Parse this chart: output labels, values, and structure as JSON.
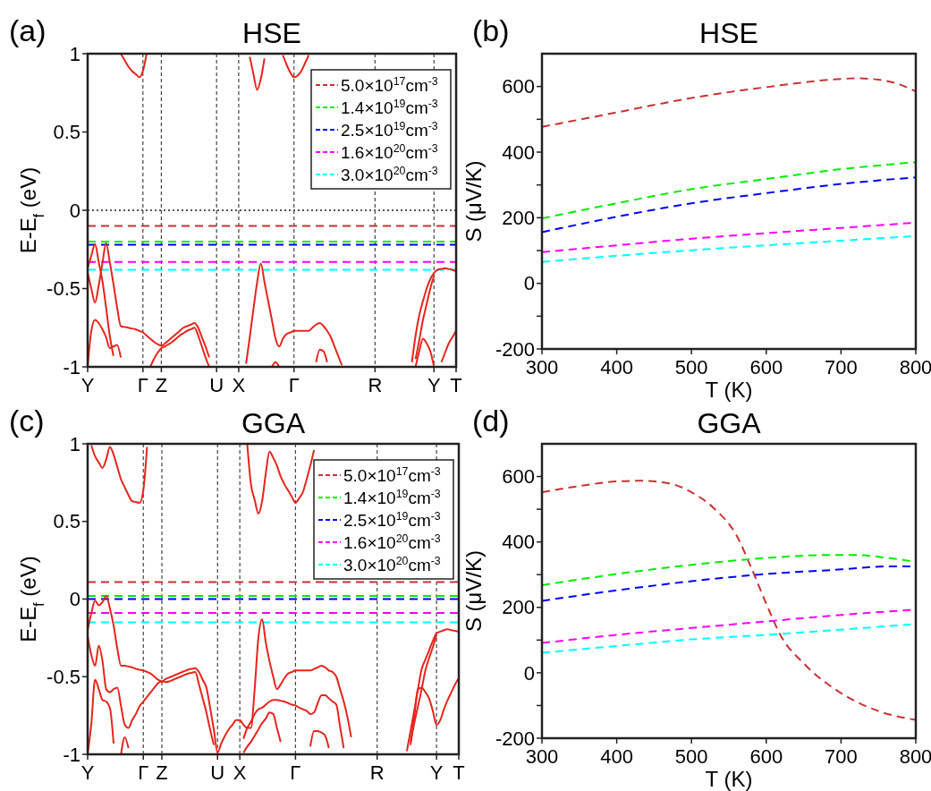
{
  "chart_data": [
    {
      "type": "line",
      "title": "HSE",
      "ylabel": "E-E$_{f}$ (eV)",
      "annotations": [
        "(a)"
      ],
      "ylim": [
        -1,
        1
      ],
      "yticks": [
        -1,
        -0.5,
        0,
        0.5,
        1
      ],
      "grid": "x",
      "legend": "top right",
      "line_style": "solid",
      "categories": [
        "Y",
        null,
        null,
        null,
        null,
        null,
        null,
        null,
        null,
        null,
        null,
        null,
        null,
        null,
        null,
        "Γ",
        null,
        null,
        null,
        null,
        "Z",
        null,
        null,
        null,
        null,
        null,
        null,
        null,
        null,
        null,
        null,
        null,
        null,
        null,
        null,
        "U",
        null,
        null,
        null,
        null,
        null,
        "X",
        null,
        null,
        null,
        null,
        null,
        null,
        null,
        null,
        null,
        null,
        null,
        null,
        null,
        null,
        "Γ",
        null,
        null,
        null,
        null,
        null,
        null,
        null,
        null,
        null,
        null,
        null,
        null,
        null,
        null,
        null,
        null,
        null,
        null,
        null,
        null,
        null,
        "R",
        null,
        null,
        null,
        null,
        null,
        null,
        null,
        null,
        null,
        null,
        null,
        null,
        null,
        null,
        null,
        "Y",
        null,
        null,
        null,
        null,
        null,
        "T"
      ],
      "ref_lines": [
        {
          "axis": "y",
          "value": 0,
          "color": "#555555",
          "line_style": "dotted"
        },
        {
          "axis": "y",
          "value": -0.1,
          "label": "5.0×10$^{17}$cm$^{-3}$",
          "color": "#c83232",
          "line_style": "dashed"
        },
        {
          "axis": "y",
          "value": -0.2,
          "label": "1.4×10$^{19}$cm$^{-3}$",
          "color": "#00ee00",
          "line_style": "dashed"
        },
        {
          "axis": "y",
          "value": -0.22,
          "label": "2.5×10$^{19}$cm$^{-3}$",
          "color": "#0000ff",
          "line_style": "dashed"
        },
        {
          "axis": "y",
          "value": -0.33,
          "label": "1.6×10$^{20}$cm$^{-3}$",
          "color": "#ff00ff",
          "line_style": "dashed"
        },
        {
          "axis": "y",
          "value": -0.38,
          "label": "3.0×10$^{20}$cm$^{-3}$",
          "color": "#00ffff",
          "line_style": "dashed"
        }
      ],
      "series": [
        {
          "color": "#e5251d",
          "values": [
            null,
            null,
            null,
            null,
            null,
            null,
            null,
            null,
            null,
            1,
            0.96,
            0.92,
            0.89,
            0.87,
            0.85,
            0.89,
            1,
            null,
            null,
            null,
            null,
            null,
            null,
            null,
            null,
            null,
            null,
            null,
            null,
            null,
            null,
            null,
            null,
            null,
            null,
            null,
            null,
            null,
            null,
            null,
            null,
            null,
            null,
            null,
            0.98,
            0.87,
            0.77,
            0.84,
            0.97,
            null,
            null,
            null,
            null,
            0.99,
            0.93,
            0.88,
            0.85,
            0.86,
            0.89,
            0.94,
            0.99,
            null,
            null,
            null,
            null,
            null,
            null,
            null,
            null,
            null,
            null,
            null,
            null,
            null,
            null,
            null,
            null,
            null,
            null,
            null,
            null,
            null,
            null,
            null,
            null,
            null,
            null,
            null,
            null,
            null,
            null,
            null,
            null,
            null,
            null,
            null,
            null,
            null,
            null,
            null,
            null
          ]
        },
        {
          "color": "#e5251d",
          "values": [
            -0.37,
            -0.29,
            -0.215,
            -0.33,
            -0.45,
            -0.62,
            -0.8,
            -0.93,
            null,
            null,
            null,
            null,
            null,
            null,
            null,
            null,
            null,
            null,
            null,
            null,
            null,
            null,
            null,
            null,
            null,
            null,
            null,
            null,
            null,
            null,
            null,
            null,
            null,
            null,
            null,
            null,
            null,
            null,
            null,
            null,
            null,
            null,
            null,
            -0.98,
            -0.81,
            -0.63,
            -0.46,
            -0.34,
            -0.46,
            -0.58,
            -0.7,
            -0.82,
            -0.87,
            -0.82,
            -0.79,
            -0.78,
            -0.77,
            -0.77,
            -0.77,
            -0.77,
            -0.77,
            -0.75,
            -0.73,
            -0.72,
            -0.74,
            -0.77,
            -0.81,
            -0.87,
            -0.93,
            -0.99,
            null,
            null,
            null,
            null,
            null,
            null,
            null,
            null,
            null,
            null,
            null,
            null,
            null,
            null,
            null,
            null,
            null,
            null,
            -0.97,
            -0.8,
            -0.67,
            -0.58,
            -0.5,
            -0.44,
            -0.4,
            -0.38,
            -0.375,
            -0.37,
            -0.375,
            -0.38,
            -0.39
          ]
        },
        {
          "color": "#e5251d",
          "values": [
            -0.4,
            -0.5,
            -0.59,
            -0.48,
            -0.34,
            -0.21,
            -0.33,
            -0.47,
            -0.62,
            -0.74,
            -0.745,
            -0.75,
            -0.755,
            -0.76,
            -0.77,
            -0.78,
            -0.8,
            -0.82,
            -0.84,
            -0.855,
            -0.865,
            -0.85,
            -0.83,
            -0.81,
            -0.79,
            -0.77,
            -0.75,
            -0.74,
            -0.73,
            -0.72,
            -0.75,
            -0.81,
            -0.87,
            -0.94,
            null,
            null,
            null,
            null,
            null,
            null,
            null,
            null,
            null,
            null,
            null,
            null,
            null,
            null,
            null,
            null,
            null,
            null,
            null,
            null,
            null,
            null,
            null,
            null,
            null,
            null,
            null,
            null,
            -0.97,
            -0.89,
            -0.9,
            -0.97,
            null,
            null,
            null,
            null,
            null,
            null,
            null,
            null,
            null,
            null,
            null,
            null,
            null,
            null,
            null,
            null,
            null,
            null,
            null,
            null,
            null,
            null,
            null,
            -0.95,
            -0.83,
            -0.7,
            -0.6,
            -0.5,
            -0.42,
            null,
            null,
            null,
            null,
            null,
            null
          ]
        },
        {
          "color": "#e5251d",
          "values": [
            -1,
            -0.77,
            -0.7,
            -0.72,
            -0.76,
            -0.81,
            -0.88,
            -0.87,
            -0.86,
            -0.94,
            null,
            null,
            null,
            null,
            null,
            null,
            null,
            -1,
            -0.95,
            -0.91,
            -0.88,
            -0.87,
            -0.855,
            -0.84,
            -0.82,
            -0.8,
            -0.785,
            -0.77,
            -0.76,
            -0.75,
            -0.8,
            -0.87,
            -0.94,
            -1,
            null,
            null,
            null,
            null,
            null,
            null,
            null,
            null,
            null,
            null,
            null,
            null,
            null,
            null,
            null,
            null,
            -1,
            -0.97,
            -1,
            null,
            null,
            null,
            null,
            null,
            null,
            null,
            null,
            null,
            null,
            null,
            null,
            null,
            null,
            null,
            null,
            null,
            null,
            null,
            null,
            null,
            null,
            null,
            null,
            null,
            null,
            null,
            null,
            null,
            null,
            null,
            null,
            null,
            null,
            null,
            null,
            -1,
            -0.9,
            -0.82,
            -0.85,
            -0.9,
            -1,
            null,
            -0.97,
            -0.91,
            -0.85,
            -0.81,
            -0.77
          ]
        }
      ]
    },
    {
      "type": "line",
      "title": "HSE",
      "xlabel": "T (K)",
      "ylabel": "S (μV/K)",
      "annotations": [
        "(b)"
      ],
      "xlim": [
        300,
        800
      ],
      "ylim": [
        -200,
        700
      ],
      "xticks": [
        300,
        400,
        500,
        600,
        700,
        800
      ],
      "yticks": [
        -200,
        {
          "value": -100,
          "label": null
        },
        0,
        {
          "value": 100,
          "label": null
        },
        200,
        {
          "value": 300,
          "label": null
        },
        400,
        {
          "value": 500,
          "label": null
        },
        600
      ],
      "line_style": "dashed",
      "series": [
        {
          "color": "#c83232",
          "x": [
            300,
            400,
            500,
            600,
            700,
            720,
            750,
            780,
            800
          ],
          "values": [
            477,
            521,
            565,
            598,
            623,
            625,
            621,
            605,
            585
          ]
        },
        {
          "color": "#00ee00",
          "x": [
            300,
            400,
            500,
            600,
            700,
            800
          ],
          "values": [
            198,
            244,
            287,
            318,
            348,
            369
          ]
        },
        {
          "color": "#0000ff",
          "x": [
            300,
            400,
            500,
            600,
            700,
            800
          ],
          "values": [
            156,
            203,
            244,
            275,
            303,
            323
          ]
        },
        {
          "color": "#ff00ff",
          "x": [
            300,
            400,
            500,
            600,
            700,
            800
          ],
          "values": [
            95,
            116,
            136,
            153,
            169,
            185
          ]
        },
        {
          "color": "#00ffff",
          "x": [
            300,
            400,
            500,
            600,
            700,
            800
          ],
          "values": [
            65,
            84,
            101,
            116,
            130,
            144
          ]
        }
      ]
    },
    {
      "type": "line",
      "title": "GGA",
      "ylabel": "E-E$_{f}$ (eV)",
      "annotations": [
        "(c)"
      ],
      "ylim": [
        -1,
        1
      ],
      "yticks": [
        -1,
        -0.5,
        0,
        0.5,
        1
      ],
      "grid": "x",
      "legend": "top right",
      "line_style": "solid",
      "categories": [
        "Y",
        null,
        null,
        null,
        null,
        null,
        null,
        null,
        null,
        null,
        null,
        null,
        null,
        null,
        null,
        "Γ",
        null,
        null,
        null,
        null,
        "Z",
        null,
        null,
        null,
        null,
        null,
        null,
        null,
        null,
        null,
        null,
        null,
        null,
        null,
        null,
        "U",
        null,
        null,
        null,
        null,
        null,
        "X",
        null,
        null,
        null,
        null,
        null,
        null,
        null,
        null,
        null,
        null,
        null,
        null,
        null,
        null,
        "Γ",
        null,
        null,
        null,
        null,
        null,
        null,
        null,
        null,
        null,
        null,
        null,
        null,
        null,
        null,
        null,
        null,
        null,
        null,
        null,
        null,
        null,
        "R",
        null,
        null,
        null,
        null,
        null,
        null,
        null,
        null,
        null,
        null,
        null,
        null,
        null,
        null,
        null,
        "Y",
        null,
        null,
        null,
        null,
        null,
        "T"
      ],
      "ref_lines": [
        {
          "axis": "y",
          "value": 0.11,
          "label": "5.0×10$^{17}$cm$^{-3}$",
          "color": "#c83232",
          "line_style": "dashed"
        },
        {
          "axis": "y",
          "value": 0.02,
          "label": "1.4×10$^{19}$cm$^{-3}$",
          "color": "#00ee00",
          "line_style": "dashed"
        },
        {
          "axis": "y",
          "value": 0,
          "label": "2.5×10$^{19}$cm$^{-3}$",
          "color": "#0000ff",
          "line_style": "dashed"
        },
        {
          "axis": "y",
          "value": -0.09,
          "label": "1.6×10$^{20}$cm$^{-3}$",
          "color": "#ff00ff",
          "line_style": "dashed"
        },
        {
          "axis": "y",
          "value": -0.15,
          "label": "3.0×10$^{20}$cm$^{-3}$",
          "color": "#00ffff",
          "line_style": "dashed"
        }
      ],
      "series": [
        {
          "color": "#e5251d",
          "values": [
            null,
            0.99,
            0.92,
            0.88,
            0.845,
            0.9,
            0.98,
            0.93,
            0.85,
            0.77,
            0.72,
            0.67,
            0.63,
            0.625,
            0.62,
            0.7,
            0.98,
            null,
            null,
            null,
            null,
            null,
            null,
            null,
            null,
            null,
            null,
            null,
            null,
            null,
            null,
            null,
            null,
            null,
            null,
            null,
            null,
            null,
            null,
            null,
            null,
            null,
            null,
            1,
            0.74,
            0.64,
            0.55,
            0.63,
            0.81,
            0.95,
            0.91,
            0.86,
            0.79,
            0.74,
            0.7,
            0.66,
            0.62,
            0.65,
            0.69,
            0.77,
            0.86,
            0.96,
            null,
            null,
            null,
            null,
            null,
            null,
            null,
            null,
            null,
            null,
            null,
            null,
            null,
            null,
            null,
            null,
            null,
            null,
            null,
            null,
            null,
            null,
            null,
            null,
            null,
            null,
            null,
            null,
            null,
            null,
            null,
            null,
            null,
            null,
            null,
            null,
            null,
            null,
            null
          ]
        },
        {
          "color": "#e5251d",
          "values": [
            -0.2,
            -0.09,
            -0.01,
            -0.04,
            -0.02,
            0.02,
            -0.06,
            -0.17,
            -0.32,
            -0.43,
            -0.43,
            -0.435,
            -0.44,
            -0.45,
            -0.455,
            -0.46,
            -0.47,
            -0.48,
            -0.5,
            -0.52,
            -0.53,
            -0.515,
            -0.505,
            -0.495,
            -0.485,
            -0.475,
            -0.465,
            -0.455,
            -0.45,
            -0.445,
            -0.47,
            -0.52,
            -0.57,
            -0.7,
            -0.84,
            -0.99,
            -0.93,
            -0.88,
            -0.84,
            -0.81,
            -0.78,
            -0.78,
            -0.81,
            -0.83,
            -0.83,
            -0.58,
            -0.25,
            -0.13,
            -0.28,
            -0.4,
            -0.5,
            -0.58,
            -0.55,
            -0.51,
            -0.48,
            -0.47,
            -0.46,
            -0.46,
            -0.46,
            -0.46,
            -0.46,
            -0.45,
            -0.44,
            -0.43,
            -0.44,
            -0.46,
            -0.47,
            -0.5,
            -0.58,
            -0.66,
            -0.76,
            -0.89,
            null,
            null,
            null,
            null,
            null,
            null,
            null,
            null,
            null,
            null,
            null,
            null,
            null,
            null,
            -0.98,
            -0.85,
            -0.72,
            -0.58,
            -0.45,
            -0.39,
            -0.33,
            -0.27,
            -0.22,
            -0.21,
            -0.2,
            -0.195,
            -0.2,
            -0.205,
            -0.21
          ]
        },
        {
          "color": "#e5251d",
          "values": [
            -0.24,
            -0.36,
            -0.43,
            -0.3,
            -0.4,
            -0.58,
            -0.6,
            -0.58,
            -0.57,
            -0.69,
            -0.81,
            -0.83,
            -0.78,
            -0.74,
            -0.69,
            -0.66,
            -0.63,
            -0.6,
            -0.57,
            -0.54,
            -0.53,
            -0.535,
            -0.53,
            -0.52,
            -0.51,
            -0.5,
            -0.49,
            -0.48,
            -0.475,
            -0.47,
            -0.55,
            -0.64,
            -0.73,
            -0.84,
            -0.94,
            null,
            null,
            null,
            null,
            null,
            null,
            null,
            -0.9,
            -0.83,
            -0.79,
            -0.74,
            -0.71,
            -0.7,
            -0.68,
            -0.66,
            -0.65,
            -0.65,
            -0.655,
            -0.66,
            -0.67,
            -0.68,
            -0.685,
            -0.7,
            -0.71,
            -0.72,
            -0.74,
            -0.73,
            -0.67,
            -0.62,
            -0.62,
            -0.64,
            -0.66,
            -0.68,
            -0.82,
            -0.96,
            null,
            null,
            null,
            null,
            null,
            null,
            null,
            null,
            null,
            null,
            null,
            null,
            null,
            null,
            null,
            null,
            null,
            -0.92,
            -0.8,
            -0.69,
            -0.58,
            -0.46,
            -0.38,
            -0.31,
            -0.23,
            null,
            null,
            null,
            null,
            null,
            null
          ]
        },
        {
          "color": "#e5251d",
          "values": [
            -1,
            -0.8,
            -0.52,
            -0.58,
            -0.65,
            -0.66,
            -0.7,
            -0.93,
            null,
            -1,
            -0.89,
            -0.96,
            null,
            null,
            null,
            null,
            null,
            null,
            null,
            null,
            null,
            null,
            null,
            null,
            null,
            null,
            null,
            null,
            null,
            null,
            null,
            null,
            null,
            null,
            null,
            null,
            null,
            null,
            null,
            null,
            null,
            null,
            -0.99,
            -0.95,
            -0.92,
            -0.88,
            -0.84,
            -0.8,
            -0.77,
            -0.73,
            -0.74,
            -0.83,
            -0.92,
            null,
            null,
            null,
            null,
            null,
            null,
            null,
            -0.95,
            -0.85,
            -0.85,
            -0.86,
            -0.88,
            -0.96,
            null,
            null,
            null,
            null,
            null,
            null,
            null,
            null,
            null,
            null,
            null,
            null,
            null,
            null,
            null,
            null,
            null,
            null,
            null,
            null,
            null,
            -0.94,
            -0.76,
            -0.58,
            -0.57,
            -0.6,
            -0.64,
            -0.72,
            -0.81,
            -0.78,
            -0.71,
            -0.65,
            -0.6,
            -0.55,
            -0.51
          ]
        }
      ]
    },
    {
      "type": "line",
      "title": "GGA",
      "xlabel": "T (K)",
      "ylabel": "S (μV/K)",
      "annotations": [
        "(d)"
      ],
      "xlim": [
        300,
        800
      ],
      "ylim": [
        -200,
        700
      ],
      "xticks": [
        300,
        400,
        500,
        600,
        700,
        800
      ],
      "yticks": [
        -200,
        {
          "value": -100,
          "label": null
        },
        0,
        {
          "value": 100,
          "label": null
        },
        200,
        {
          "value": 300,
          "label": null
        },
        400,
        {
          "value": 500,
          "label": null
        },
        600
      ],
      "line_style": "dashed",
      "series": [
        {
          "color": "#c83232",
          "x": [
            300,
            350,
            400,
            430,
            470,
            500,
            530,
            560,
            580,
            600,
            620,
            650,
            700,
            750,
            800
          ],
          "values": [
            552,
            571,
            585,
            587,
            579,
            552,
            503,
            421,
            321,
            211,
            111,
            29,
            -62,
            -117,
            -144
          ]
        },
        {
          "color": "#00ee00",
          "x": [
            300,
            400,
            500,
            600,
            680,
            720,
            760,
            800
          ],
          "values": [
            268,
            302,
            330,
            351,
            360,
            360,
            352,
            339
          ]
        },
        {
          "color": "#0000ff",
          "x": [
            300,
            400,
            500,
            600,
            700,
            760,
            800
          ],
          "values": [
            220,
            252,
            280,
            302,
            316,
            325,
            325
          ]
        },
        {
          "color": "#ff00ff",
          "x": [
            300,
            400,
            500,
            600,
            700,
            800
          ],
          "values": [
            91,
            116,
            137,
            157,
            177,
            193
          ]
        },
        {
          "color": "#00ffff",
          "x": [
            300,
            400,
            500,
            600,
            700,
            800
          ],
          "values": [
            61,
            82,
            102,
            116,
            132,
            149
          ]
        }
      ]
    }
  ]
}
